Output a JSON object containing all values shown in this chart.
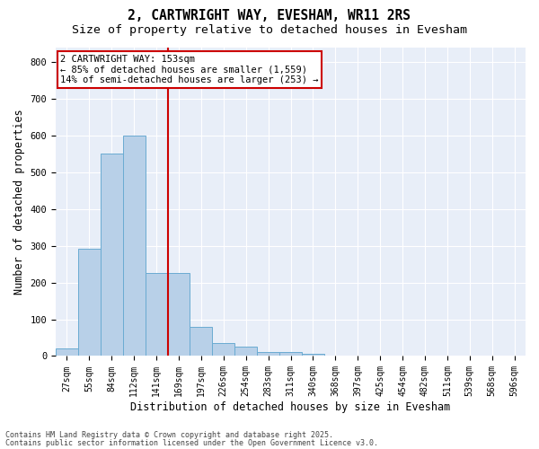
{
  "title1": "2, CARTWRIGHT WAY, EVESHAM, WR11 2RS",
  "title2": "Size of property relative to detached houses in Evesham",
  "xlabel": "Distribution of detached houses by size in Evesham",
  "ylabel": "Number of detached properties",
  "categories": [
    "27sqm",
    "55sqm",
    "84sqm",
    "112sqm",
    "141sqm",
    "169sqm",
    "197sqm",
    "226sqm",
    "254sqm",
    "283sqm",
    "311sqm",
    "340sqm",
    "368sqm",
    "397sqm",
    "425sqm",
    "454sqm",
    "482sqm",
    "511sqm",
    "539sqm",
    "568sqm",
    "596sqm"
  ],
  "values": [
    20,
    292,
    550,
    600,
    225,
    225,
    80,
    35,
    25,
    12,
    10,
    5,
    0,
    0,
    0,
    0,
    0,
    0,
    0,
    0,
    0
  ],
  "bar_color": "#b8d0e8",
  "bar_edge_color": "#6aabd2",
  "vline_color": "#cc0000",
  "annotation_text": "2 CARTWRIGHT WAY: 153sqm\n← 85% of detached houses are smaller (1,559)\n14% of semi-detached houses are larger (253) →",
  "box_color": "#cc0000",
  "ylim": [
    0,
    840
  ],
  "yticks": [
    0,
    100,
    200,
    300,
    400,
    500,
    600,
    700,
    800
  ],
  "plot_bg_color": "#e8eef8",
  "fig_bg_color": "#ffffff",
  "grid_color": "#ffffff",
  "footer1": "Contains HM Land Registry data © Crown copyright and database right 2025.",
  "footer2": "Contains public sector information licensed under the Open Government Licence v3.0.",
  "title_fontsize": 10.5,
  "subtitle_fontsize": 9.5,
  "tick_fontsize": 7,
  "label_fontsize": 8.5,
  "annot_fontsize": 7.5,
  "footer_fontsize": 6
}
